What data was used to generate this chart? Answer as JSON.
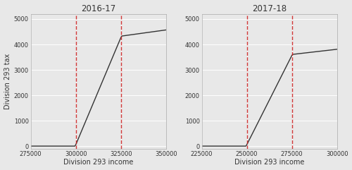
{
  "panel1": {
    "title": "2016-17",
    "xlabel": "Division 293 income",
    "ylabel": "Division 293 tax",
    "xlim": [
      275000,
      350000
    ],
    "ylim": [
      -100,
      5200
    ],
    "xticks": [
      275000,
      300000,
      325000,
      350000
    ],
    "yticks": [
      0,
      1000,
      2000,
      3000,
      4000,
      5000
    ],
    "vlines": [
      300000,
      325000
    ],
    "line_x": [
      275000,
      299500,
      300000,
      325000,
      325500,
      350000
    ],
    "line_y": [
      5,
      5,
      60,
      4270,
      4330,
      4570
    ]
  },
  "panel2": {
    "title": "2017-18",
    "xlabel": "Division 293 income",
    "ylabel": "",
    "xlim": [
      225000,
      300000
    ],
    "ylim": [
      -100,
      5200
    ],
    "xticks": [
      225000,
      250000,
      275000,
      300000
    ],
    "yticks": [
      0,
      1000,
      2000,
      3000,
      4000,
      5000
    ],
    "vlines": [
      250000,
      275000
    ],
    "line_x": [
      225000,
      249500,
      250000,
      275000,
      275500,
      300000
    ],
    "line_y": [
      5,
      5,
      60,
      3570,
      3610,
      3810
    ]
  },
  "line_color": "#333333",
  "vline_color": "#cc2222",
  "bg_color": "#e8e8e8",
  "plot_bg_color": "#e8e8e8",
  "grid_color": "#ffffff",
  "font_color": "#333333",
  "tick_labelsize": 6.0,
  "title_fontsize": 8.5,
  "label_fontsize": 7.0
}
